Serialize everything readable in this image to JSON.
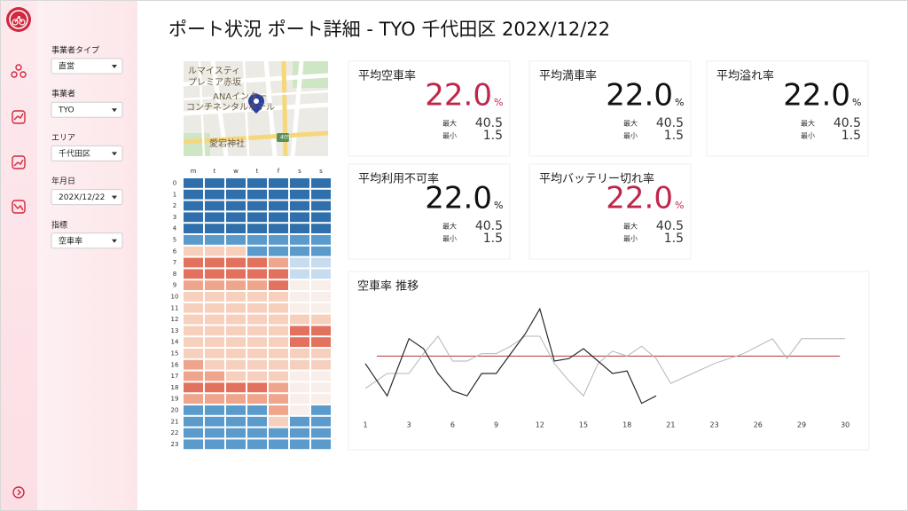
{
  "header": {
    "title": "ポート状況 ポート詳細 - TYO 千代田区 202X/12/22"
  },
  "filters": [
    {
      "label": "事業者タイプ",
      "value": "直営"
    },
    {
      "label": "事業者",
      "value": "TYO"
    },
    {
      "label": "エリア",
      "value": "千代田区"
    },
    {
      "label": "年月日",
      "value": "202X/12/22"
    },
    {
      "label": "指標",
      "value": "空車率"
    }
  ],
  "map": {
    "labels": [
      "ルマイスティ",
      "プレミア赤坂",
      "ANAインター",
      "コンチネンタルホテル",
      "愛宕神社",
      "405"
    ]
  },
  "heatmap": {
    "columns": [
      "m",
      "t",
      "w",
      "t",
      "f",
      "s",
      "s"
    ],
    "rows": [
      0,
      1,
      2,
      3,
      4,
      5,
      6,
      7,
      8,
      9,
      10,
      11,
      12,
      13,
      14,
      15,
      16,
      17,
      18,
      19,
      20,
      21,
      22,
      23
    ],
    "color_scale": [
      "#2f6fab",
      "#5b9bcc",
      "#c7dcef",
      "#f8eeea",
      "#f7d0bd",
      "#efa58b",
      "#e2725d",
      "#d5564a"
    ],
    "values": [
      [
        1,
        1,
        1,
        1,
        1,
        1,
        1
      ],
      [
        1,
        1,
        1,
        1,
        1,
        1,
        1
      ],
      [
        1,
        1,
        1,
        1,
        1,
        1,
        1
      ],
      [
        1,
        1,
        1,
        1,
        1,
        1,
        1
      ],
      [
        1,
        1,
        1,
        1,
        1,
        1,
        1
      ],
      [
        2,
        2,
        2,
        2,
        2,
        2,
        2
      ],
      [
        5,
        5,
        5,
        2,
        2,
        2,
        2
      ],
      [
        7,
        7,
        7,
        7,
        6,
        3,
        3
      ],
      [
        7,
        7,
        7,
        7,
        7,
        3,
        3
      ],
      [
        6,
        6,
        6,
        6,
        7,
        4,
        4
      ],
      [
        5,
        5,
        5,
        5,
        5,
        4,
        4
      ],
      [
        5,
        5,
        5,
        5,
        5,
        4,
        4
      ],
      [
        5,
        5,
        5,
        5,
        5,
        5,
        5
      ],
      [
        5,
        5,
        5,
        5,
        5,
        7,
        7
      ],
      [
        5,
        5,
        5,
        5,
        5,
        7,
        7
      ],
      [
        5,
        5,
        5,
        5,
        5,
        5,
        5
      ],
      [
        6,
        5,
        5,
        5,
        5,
        5,
        5
      ],
      [
        6,
        6,
        5,
        5,
        5,
        4,
        4
      ],
      [
        7,
        7,
        7,
        7,
        6,
        4,
        4
      ],
      [
        6,
        6,
        6,
        6,
        6,
        4,
        4
      ],
      [
        2,
        2,
        2,
        2,
        6,
        4,
        2
      ],
      [
        2,
        2,
        2,
        2,
        5,
        2,
        2
      ],
      [
        2,
        2,
        2,
        2,
        2,
        2,
        2
      ],
      [
        2,
        2,
        2,
        2,
        2,
        2,
        2
      ]
    ]
  },
  "kpis": [
    {
      "title": "平均空車率",
      "value": "22.0",
      "unit": "%",
      "max_label": "最大",
      "max": 40.5,
      "min_label": "最小",
      "min": 1.5,
      "color": "#c0264a"
    },
    {
      "title": "平均満車率",
      "value": "22.0",
      "unit": "%",
      "max_label": "最大",
      "max": 40.5,
      "min_label": "最小",
      "min": 1.5,
      "color": "#111111"
    },
    {
      "title": "平均溢れ率",
      "value": "22.0",
      "unit": "%",
      "max_label": "最大",
      "max": 40.5,
      "min_label": "最小",
      "min": 1.5,
      "color": "#111111"
    },
    {
      "title": "平均利用不可率",
      "value": "22.0",
      "unit": "%",
      "max_label": "最大",
      "max": 40.5,
      "min_label": "最小",
      "min": 1.5,
      "color": "#111111"
    },
    {
      "title": "平均バッテリー切れ率",
      "value": "22.0",
      "unit": "%",
      "max_label": "最大",
      "max": 40.5,
      "min_label": "最小",
      "min": 1.5,
      "color": "#c0264a"
    }
  ],
  "chart_data": {
    "type": "line",
    "title": "空車率 推移",
    "x": [
      1,
      2,
      3,
      4,
      5,
      6,
      7,
      8,
      9,
      10,
      11,
      12,
      13,
      14,
      15,
      16,
      17,
      18,
      19,
      20,
      21,
      22,
      23,
      24,
      25,
      26,
      27,
      28,
      29,
      30
    ],
    "xticks": [
      1,
      3,
      6,
      9,
      12,
      15,
      18,
      21,
      23,
      26,
      29,
      30
    ],
    "ylim": [
      0,
      50
    ],
    "reference_line": {
      "value": 22,
      "color": "#b03a3a"
    },
    "series": [
      {
        "color": "#2a2a2a",
        "values": [
          19,
          6,
          29,
          25,
          15,
          8,
          6,
          15,
          15,
          23,
          31,
          41,
          20,
          21,
          25,
          20,
          15,
          16,
          3,
          6,
          null,
          null,
          null,
          null,
          null,
          null,
          null,
          null,
          null,
          null
        ]
      },
      {
        "color": "#b5b5b5",
        "values": [
          9,
          15,
          15,
          23,
          30,
          20,
          20,
          23,
          23,
          26,
          30,
          30,
          19,
          12,
          6,
          19,
          24,
          22,
          26,
          21,
          11,
          15,
          19,
          21,
          23,
          26,
          29,
          21,
          29,
          29
        ]
      }
    ]
  }
}
